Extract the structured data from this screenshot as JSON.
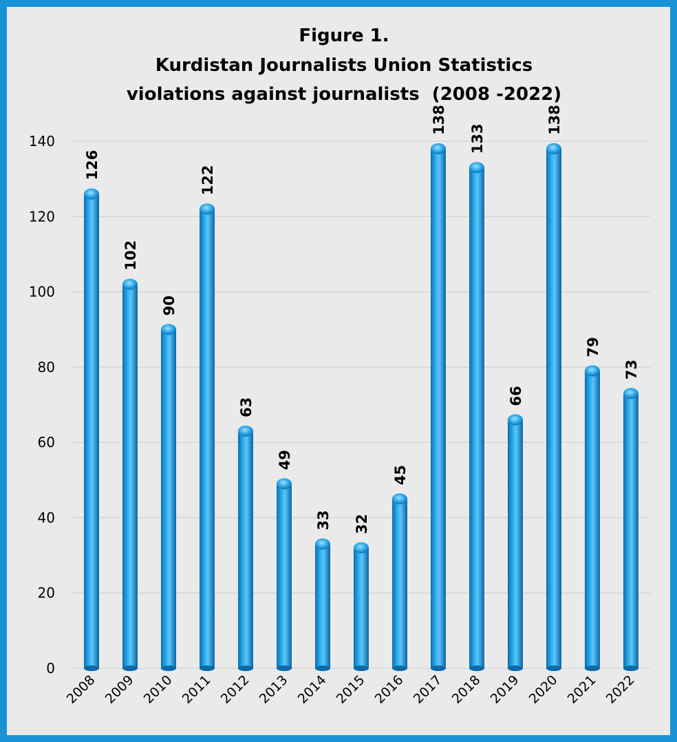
{
  "chart_data": {
    "type": "bar",
    "title_lines": [
      "Figure 1.",
      "Kurdistan Journalists Union Statistics",
      "violations against journalists  (2008 -2022)"
    ],
    "categories": [
      "2008",
      "2009",
      "2010",
      "2011",
      "2012",
      "2013",
      "2014",
      "2015",
      "2016",
      "2017",
      "2018",
      "2019",
      "2020",
      "2021",
      "2022"
    ],
    "values": [
      126,
      102,
      90,
      122,
      63,
      49,
      33,
      32,
      45,
      138,
      133,
      66,
      138,
      79,
      73
    ],
    "xlabel": "",
    "ylabel": "",
    "ylim": [
      0,
      140
    ],
    "yticks": [
      0,
      20,
      40,
      60,
      80,
      100,
      120,
      140
    ],
    "grid": true,
    "legend": "none",
    "colors": {
      "bar": "#1a9ae0",
      "frame": "#1a92d8",
      "background": "#eaeaea",
      "grid": "#d6d6d6"
    }
  }
}
